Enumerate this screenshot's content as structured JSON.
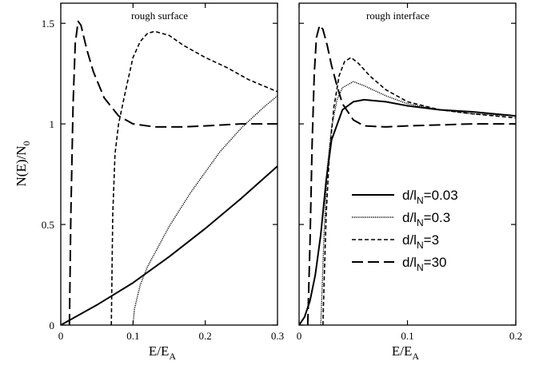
{
  "chart_data": [
    {
      "type": "line",
      "title": "rough surface",
      "xlabel": "E/E_A",
      "ylabel": "N(E)/N_0",
      "xlim": [
        0,
        0.3
      ],
      "ylim": [
        0,
        1.6
      ],
      "xticks": [
        0,
        0.1,
        0.2,
        0.3
      ],
      "xtick_labels": [
        "0",
        "0.1",
        "0.2",
        "0.3"
      ],
      "yticks": [
        0,
        0.5,
        1,
        1.5
      ],
      "ytick_labels": [
        "0",
        "0.5",
        "1",
        "1.5"
      ],
      "series": [
        {
          "name": "d/l_N=0.03",
          "x": [
            0,
            0.05,
            0.1,
            0.15,
            0.2,
            0.25,
            0.3
          ],
          "y": [
            0,
            0.1,
            0.21,
            0.34,
            0.48,
            0.63,
            0.79
          ]
        },
        {
          "name": "d/l_N=0.3",
          "x": [
            0.1,
            0.102,
            0.11,
            0.12,
            0.15,
            0.18,
            0.2,
            0.22,
            0.25,
            0.28,
            0.3
          ],
          "y": [
            0,
            0.08,
            0.2,
            0.29,
            0.49,
            0.66,
            0.76,
            0.86,
            0.98,
            1.08,
            1.14
          ]
        },
        {
          "name": "d/l_N=3",
          "x": [
            0.07,
            0.072,
            0.075,
            0.08,
            0.09,
            0.1,
            0.11,
            0.12,
            0.13,
            0.15,
            0.17,
            0.2,
            0.23,
            0.26,
            0.28,
            0.3
          ],
          "y": [
            0,
            0.55,
            0.85,
            1.0,
            1.17,
            1.33,
            1.41,
            1.45,
            1.46,
            1.44,
            1.39,
            1.33,
            1.28,
            1.22,
            1.19,
            1.16
          ]
        },
        {
          "name": "d/l_N=30",
          "x": [
            0.012,
            0.014,
            0.017,
            0.02,
            0.024,
            0.028,
            0.032,
            0.036,
            0.045,
            0.06,
            0.08,
            0.1,
            0.13,
            0.17,
            0.2,
            0.25,
            0.3
          ],
          "y": [
            0,
            0.55,
            1.1,
            1.4,
            1.51,
            1.49,
            1.43,
            1.37,
            1.26,
            1.13,
            1.04,
            1.0,
            0.985,
            0.985,
            0.99,
            1.0,
            1.0
          ]
        }
      ]
    },
    {
      "type": "line",
      "title": "rough interface",
      "xlabel": "E/E_A",
      "ylabel": "",
      "xlim": [
        0,
        0.2
      ],
      "ylim": [
        0,
        1.6
      ],
      "xticks": [
        0,
        0.1,
        0.2
      ],
      "xtick_labels": [
        "0",
        "0.1",
        "0.2"
      ],
      "yticks": [
        0,
        0.5,
        1,
        1.5
      ],
      "ytick_labels": [],
      "series": [
        {
          "name": "d/l_N=0.03",
          "x": [
            0,
            0.005,
            0.01,
            0.015,
            0.02,
            0.025,
            0.03,
            0.04,
            0.05,
            0.06,
            0.08,
            0.1,
            0.13,
            0.16,
            0.2
          ],
          "y": [
            0,
            0.04,
            0.12,
            0.25,
            0.45,
            0.72,
            0.92,
            1.07,
            1.11,
            1.12,
            1.11,
            1.09,
            1.07,
            1.06,
            1.04
          ]
        },
        {
          "name": "d/l_N=0.3",
          "x": [
            0.02,
            0.021,
            0.023,
            0.026,
            0.03,
            0.035,
            0.04,
            0.05,
            0.06,
            0.08,
            0.1,
            0.13,
            0.16,
            0.2
          ],
          "y": [
            0,
            0.15,
            0.45,
            0.78,
            0.98,
            1.12,
            1.18,
            1.21,
            1.19,
            1.14,
            1.1,
            1.07,
            1.05,
            1.04
          ]
        },
        {
          "name": "d/l_N=3",
          "x": [
            0.022,
            0.023,
            0.025,
            0.028,
            0.032,
            0.037,
            0.042,
            0.048,
            0.055,
            0.065,
            0.08,
            0.1,
            0.13,
            0.16,
            0.2
          ],
          "y": [
            0,
            0.2,
            0.55,
            0.85,
            1.08,
            1.24,
            1.31,
            1.33,
            1.3,
            1.24,
            1.17,
            1.11,
            1.07,
            1.05,
            1.03
          ]
        },
        {
          "name": "d/l_N=30",
          "x": [
            0.008,
            0.01,
            0.012,
            0.014,
            0.016,
            0.019,
            0.022,
            0.026,
            0.03,
            0.035,
            0.04,
            0.05,
            0.06,
            0.08,
            0.1,
            0.13,
            0.16,
            0.2
          ],
          "y": [
            0,
            0.4,
            0.9,
            1.25,
            1.43,
            1.49,
            1.47,
            1.39,
            1.29,
            1.19,
            1.1,
            1.02,
            0.99,
            0.985,
            0.99,
            0.995,
            1.0,
            1.0
          ]
        }
      ]
    }
  ],
  "legend": [
    {
      "label": "d/l",
      "sub": "N",
      "rest": "=0.03"
    },
    {
      "label": "d/l",
      "sub": "N",
      "rest": "=0.3"
    },
    {
      "label": "d/l",
      "sub": "N",
      "rest": "=3"
    },
    {
      "label": "d/l",
      "sub": "N",
      "rest": "=30"
    }
  ],
  "axis_text": {
    "ylabel_main": "N(E)/N",
    "ylabel_sub": "0",
    "xlabel_main": "E/E",
    "xlabel_sub": "A"
  },
  "styles": {
    "line_color": "#000000",
    "series_dash": [
      "none",
      "1.2,1.2",
      "5,3",
      "14,6"
    ],
    "series_width": [
      2,
      1.4,
      1.6,
      2
    ]
  }
}
